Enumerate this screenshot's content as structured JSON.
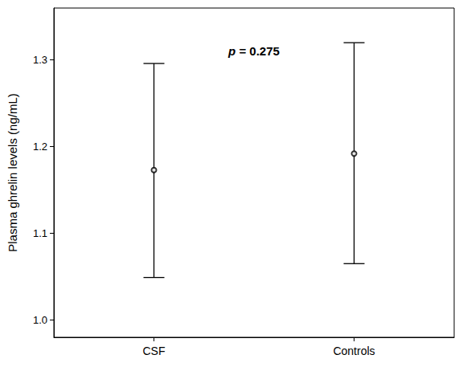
{
  "chart_data": {
    "type": "errorbar",
    "y_label": "Plasma ghrelin levels (ng/mL)",
    "annotation": "p = 0.275",
    "categories": [
      "CSF",
      "Controls"
    ],
    "values": [
      1.173,
      1.192
    ],
    "error_low": [
      1.049,
      1.065
    ],
    "error_high": [
      1.296,
      1.32
    ],
    "color": "#000000",
    "marker": "open_circle",
    "ylim": [
      0.98,
      1.36
    ],
    "yticks": [
      {
        "value": 1.0,
        "label": "1.0"
      },
      1.1,
      1.2,
      1.3
    ],
    "grid": false
  }
}
